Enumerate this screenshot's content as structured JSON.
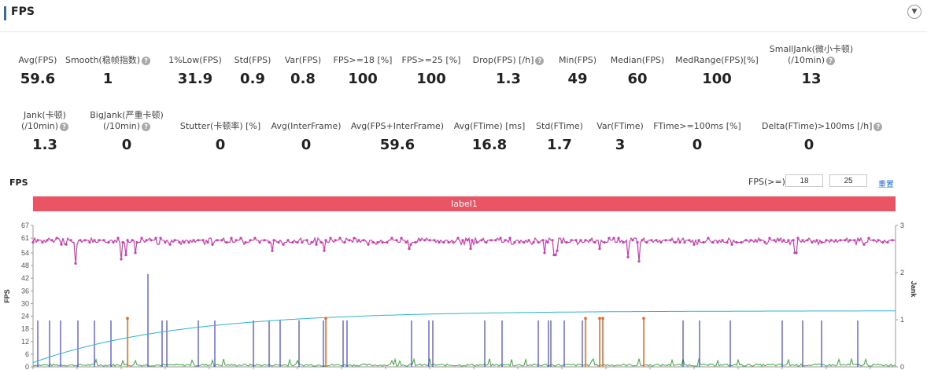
{
  "header": {
    "title": "FPS",
    "collapse_icon": "chevron-down-icon"
  },
  "metrics_row1": [
    {
      "label": "Avg(FPS)",
      "value": "59.6",
      "help": false
    },
    {
      "label": "Smooth(稳帧指数)",
      "value": "1",
      "help": true
    },
    {
      "label": "1%Low(FPS)",
      "value": "31.9",
      "help": false
    },
    {
      "label": "Std(FPS)",
      "value": "0.9",
      "help": false
    },
    {
      "label": "Var(FPS)",
      "value": "0.8",
      "help": false
    },
    {
      "label": "FPS>=18 [%]",
      "value": "100",
      "help": false
    },
    {
      "label": "FPS>=25 [%]",
      "value": "100",
      "help": false
    },
    {
      "label": "Drop(FPS) [/h]",
      "value": "1.3",
      "help": true
    },
    {
      "label": "Min(FPS)",
      "value": "49",
      "help": false
    },
    {
      "label": "Median(FPS)",
      "value": "60",
      "help": false
    },
    {
      "label": "MedRange(FPS)[%]",
      "value": "100",
      "help": false
    },
    {
      "label": "SmallJank(微小卡顿)",
      "label2": "(/10min)",
      "value": "13",
      "help": true
    }
  ],
  "metrics_row2": [
    {
      "label": "Jank(卡顿)",
      "label2": "(/10min)",
      "value": "1.3",
      "help": true
    },
    {
      "label": "BigJank(严重卡顿)",
      "label2": "(/10min)",
      "value": "0",
      "help": true
    },
    {
      "label": "Stutter(卡顿率) [%]",
      "value": "0",
      "help": false
    },
    {
      "label": "Avg(InterFrame)",
      "value": "0",
      "help": false
    },
    {
      "label": "Avg(FPS+InterFrame)",
      "value": "59.6",
      "help": false
    },
    {
      "label": "Avg(FTime) [ms]",
      "value": "16.8",
      "help": false
    },
    {
      "label": "Std(FTime)",
      "value": "1.7",
      "help": false
    },
    {
      "label": "Var(FTime)",
      "value": "3",
      "help": false
    },
    {
      "label": "FTime>=100ms [%]",
      "value": "0",
      "help": false
    },
    {
      "label": "Delta(FTime)>100ms [/h]",
      "value": "0",
      "help": true
    }
  ],
  "chart_section": {
    "title": "FPS",
    "threshold_label": "FPS(>=)",
    "threshold_values": [
      "18",
      "25"
    ],
    "reset_label": "重置",
    "label_bar": "label1"
  },
  "chart_data": {
    "type": "line",
    "left_axis": {
      "label": "FPS",
      "ticks": [
        0,
        6,
        12,
        18,
        24,
        30,
        36,
        42,
        48,
        54,
        61,
        67
      ],
      "range": [
        0,
        67
      ]
    },
    "right_axis": {
      "label": "Jank",
      "ticks": [
        0,
        1,
        2,
        3
      ],
      "range": [
        0,
        3
      ]
    },
    "series": [
      {
        "name": "FPS",
        "color": "#cc3fb0",
        "baseline": 59.6,
        "dip_values": [
          49,
          51,
          53,
          54,
          55,
          55,
          56,
          56,
          54,
          53,
          55,
          56,
          52,
          50,
          54
        ]
      },
      {
        "name": "Jank",
        "color": "#4444cc",
        "spike_values": [
          22,
          22,
          22,
          22,
          22,
          22,
          44,
          22,
          22,
          22,
          22,
          22,
          22,
          22,
          22,
          22,
          22,
          22,
          22,
          22,
          22,
          22,
          22,
          22,
          22,
          22,
          22,
          22,
          22,
          22,
          22,
          22,
          22
        ]
      },
      {
        "name": "SmallJank",
        "color": "#e2672a",
        "spike_values": [
          23,
          23,
          23,
          23,
          23,
          23
        ]
      },
      {
        "name": "Avg FPS cumulative",
        "color": "#2bb5c9",
        "start": 2,
        "end": 26.5
      },
      {
        "name": "InterFrame",
        "color": "#3aa83a",
        "baseline": 0.8
      }
    ],
    "colors": {
      "fps": "#cc3fb0",
      "jank": "#4444cc",
      "small_jank": "#e2672a",
      "cumulative": "#2bb5c9",
      "interframe": "#3aa83a",
      "label_bar": "#e95565"
    }
  }
}
